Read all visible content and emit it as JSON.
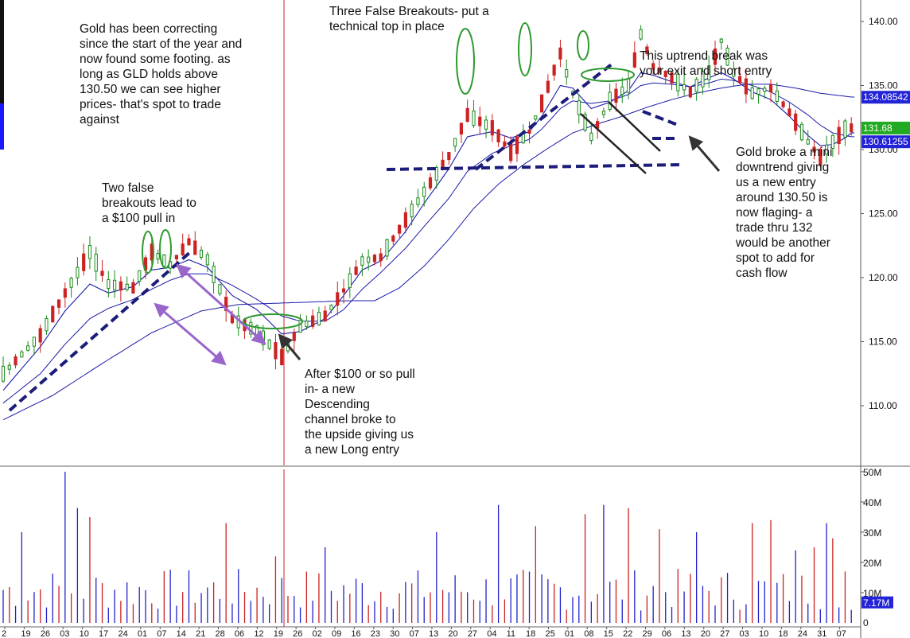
{
  "chart_data": {
    "type": "candlestick",
    "title": "",
    "colors": {
      "up": "#1a8a1a",
      "down": "#cc2222",
      "ma_line": "#1a1aa8",
      "trendline": "#1c1c7a",
      "arrow_purple": "#9966cc",
      "arrow_dark": "#333333",
      "ellipse": "#2e9a2e",
      "volume_up": "#2222cc",
      "volume_down": "#cc2222",
      "divider": "#cc2222",
      "badge_blue": "#2323d8",
      "badge_green": "#22aa22"
    },
    "price_axis": {
      "ylim": [
        106.0,
        141.0
      ],
      "ticks": [
        "110.00",
        "115.00",
        "120.00",
        "125.00",
        "130.00",
        "135.00",
        "140.00"
      ],
      "badges": [
        {
          "label": "134.08542",
          "value": 134.085,
          "color": "#2323d8"
        },
        {
          "label": "131.68",
          "value": 131.68,
          "color": "#22aa22"
        },
        {
          "label": "130.61255",
          "value": 130.61,
          "color": "#2323d8"
        }
      ]
    },
    "volume_axis": {
      "ylim": [
        0,
        52
      ],
      "ticks": [
        "10M",
        "20M",
        "30M",
        "40M",
        "50M"
      ],
      "zero_label": "0",
      "badge": {
        "label": "7.17M",
        "value": 7.17,
        "color": "#2323d8"
      }
    },
    "x_tick_labels": [
      "2",
      "19",
      "26",
      "03",
      "10",
      "17",
      "24",
      "01",
      "07",
      "14",
      "21",
      "28",
      "06",
      "12",
      "19",
      "26",
      "02",
      "09",
      "16",
      "23",
      "30",
      "07",
      "13",
      "20",
      "27",
      "04",
      "11",
      "18",
      "25",
      "01",
      "08",
      "15",
      "22",
      "29",
      "06",
      "13",
      "20",
      "27",
      "03",
      "10",
      "18",
      "24",
      "31",
      "07"
    ],
    "price_path": [
      [
        0,
        112.5
      ],
      [
        6,
        115.5
      ],
      [
        10,
        118.8
      ],
      [
        14,
        122.0
      ],
      [
        17,
        119.5
      ],
      [
        21,
        119.2
      ],
      [
        24,
        122.0
      ],
      [
        27,
        121.0
      ],
      [
        30,
        122.8
      ],
      [
        33,
        121.4
      ],
      [
        37,
        116.8
      ],
      [
        41,
        115.8
      ],
      [
        45,
        113.8
      ],
      [
        48,
        116.2
      ],
      [
        52,
        117.0
      ],
      [
        55,
        119.0
      ],
      [
        58,
        121.3
      ],
      [
        61,
        121.6
      ],
      [
        65,
        124.5
      ],
      [
        68,
        126.7
      ],
      [
        72,
        129.5
      ],
      [
        75,
        132.7
      ],
      [
        79,
        131.7
      ],
      [
        82,
        129.8
      ],
      [
        85,
        131.4
      ],
      [
        87,
        133.6
      ],
      [
        90,
        137.5
      ],
      [
        92,
        134.4
      ],
      [
        95,
        131.0
      ],
      [
        98,
        133.8
      ],
      [
        101,
        135.0
      ],
      [
        103,
        139.0
      ],
      [
        105,
        136.5
      ],
      [
        108,
        135.6
      ],
      [
        111,
        134.5
      ],
      [
        114,
        136.0
      ],
      [
        116,
        138.5
      ],
      [
        118,
        136.0
      ],
      [
        121,
        134.4
      ],
      [
        124,
        134.8
      ],
      [
        127,
        132.9
      ],
      [
        130,
        130.6
      ],
      [
        132,
        129.4
      ],
      [
        134,
        130.6
      ],
      [
        136,
        131.6
      ],
      [
        137,
        131.7
      ]
    ],
    "ma_fast": [
      [
        0,
        111.2
      ],
      [
        6,
        114.6
      ],
      [
        10,
        117.4
      ],
      [
        14,
        119.5
      ],
      [
        17,
        118.8
      ],
      [
        21,
        119.3
      ],
      [
        24,
        120.6
      ],
      [
        27,
        120.8
      ],
      [
        30,
        121.4
      ],
      [
        33,
        120.8
      ],
      [
        37,
        118.6
      ],
      [
        41,
        117.5
      ],
      [
        45,
        115.6
      ],
      [
        48,
        115.8
      ],
      [
        52,
        116.8
      ],
      [
        55,
        118.6
      ],
      [
        58,
        120.6
      ],
      [
        61,
        121.3
      ],
      [
        65,
        123.6
      ],
      [
        68,
        125.8
      ],
      [
        72,
        128.5
      ],
      [
        75,
        131.0
      ],
      [
        79,
        131.4
      ],
      [
        82,
        130.9
      ],
      [
        85,
        131.4
      ],
      [
        87,
        132.6
      ],
      [
        90,
        135.0
      ],
      [
        92,
        134.8
      ],
      [
        95,
        133.2
      ],
      [
        98,
        133.7
      ],
      [
        101,
        134.6
      ],
      [
        103,
        136.0
      ],
      [
        105,
        135.8
      ],
      [
        108,
        135.3
      ],
      [
        111,
        134.9
      ],
      [
        114,
        135.6
      ],
      [
        116,
        136.0
      ],
      [
        118,
        135.5
      ],
      [
        121,
        134.5
      ],
      [
        124,
        133.9
      ],
      [
        127,
        132.6
      ],
      [
        130,
        131.1
      ],
      [
        132,
        130.3
      ],
      [
        134,
        130.4
      ],
      [
        136,
        130.9
      ],
      [
        137,
        131.3
      ]
    ],
    "ma_mid": [
      [
        0,
        110.2
      ],
      [
        6,
        112.5
      ],
      [
        10,
        114.8
      ],
      [
        14,
        116.8
      ],
      [
        17,
        117.6
      ],
      [
        21,
        118.3
      ],
      [
        24,
        119.1
      ],
      [
        27,
        119.8
      ],
      [
        30,
        120.3
      ],
      [
        33,
        120.3
      ],
      [
        37,
        119.4
      ],
      [
        41,
        118.3
      ],
      [
        45,
        117.0
      ],
      [
        48,
        116.6
      ],
      [
        52,
        116.6
      ],
      [
        55,
        117.5
      ],
      [
        58,
        119.1
      ],
      [
        61,
        120.4
      ],
      [
        65,
        122.3
      ],
      [
        68,
        124.0
      ],
      [
        72,
        126.2
      ],
      [
        75,
        128.3
      ],
      [
        79,
        129.7
      ],
      [
        82,
        130.3
      ],
      [
        85,
        130.8
      ],
      [
        87,
        131.6
      ],
      [
        90,
        133.2
      ],
      [
        92,
        133.8
      ],
      [
        95,
        133.6
      ],
      [
        98,
        133.8
      ],
      [
        101,
        134.3
      ],
      [
        103,
        135.0
      ],
      [
        105,
        135.2
      ],
      [
        108,
        135.1
      ],
      [
        111,
        134.9
      ],
      [
        114,
        135.2
      ],
      [
        116,
        135.5
      ],
      [
        118,
        135.4
      ],
      [
        121,
        135.0
      ],
      [
        124,
        134.5
      ],
      [
        127,
        133.7
      ],
      [
        130,
        132.7
      ],
      [
        132,
        131.9
      ],
      [
        134,
        131.3
      ],
      [
        136,
        131.1
      ],
      [
        137,
        131.0
      ]
    ],
    "ma_slow": [
      [
        0,
        108.9
      ],
      [
        8,
        110.8
      ],
      [
        16,
        113.3
      ],
      [
        24,
        115.7
      ],
      [
        32,
        117.4
      ],
      [
        38,
        117.9
      ],
      [
        44,
        118.0
      ],
      [
        50,
        118.1
      ],
      [
        56,
        118.2
      ],
      [
        60,
        118.2
      ],
      [
        64,
        119.2
      ],
      [
        68,
        120.9
      ],
      [
        72,
        123.0
      ],
      [
        76,
        125.4
      ],
      [
        80,
        127.3
      ],
      [
        84,
        128.8
      ],
      [
        88,
        130.1
      ],
      [
        92,
        131.3
      ],
      [
        96,
        132.0
      ],
      [
        100,
        132.6
      ],
      [
        104,
        133.3
      ],
      [
        108,
        133.9
      ],
      [
        112,
        134.4
      ],
      [
        116,
        134.8
      ],
      [
        120,
        135.1
      ],
      [
        124,
        135.1
      ],
      [
        128,
        134.8
      ],
      [
        132,
        134.4
      ],
      [
        137,
        134.1
      ]
    ],
    "volume_highlights": [
      [
        3,
        30
      ],
      [
        10,
        50
      ],
      [
        12,
        38
      ],
      [
        14,
        35
      ],
      [
        36,
        33
      ],
      [
        44,
        22
      ],
      [
        52,
        25
      ],
      [
        70,
        30
      ],
      [
        80,
        39
      ],
      [
        86,
        32
      ],
      [
        94,
        36
      ],
      [
        97,
        39
      ],
      [
        101,
        38
      ],
      [
        106,
        31
      ],
      [
        112,
        30
      ],
      [
        121,
        33
      ],
      [
        124,
        34
      ],
      [
        128,
        24
      ],
      [
        131,
        25
      ],
      [
        133,
        33
      ],
      [
        134,
        28
      ],
      [
        136,
        17
      ]
    ]
  },
  "annotations": {
    "top_left": "Gold has been correcting\nsince the start of the year and\nnow found some footing. as\nlong as GLD holds above\n130.50 we can see higher\nprices- that's spot to trade\nagainst",
    "two_false": "Two false\nbreakouts lead to\na $100 pull in",
    "three_false": "Three False Breakouts- put a\ntechnical top in place",
    "uptrend_break": "This uptrend break was\nyour exit and short entry",
    "mini_downtrend": "Gold broke a mini\ndowntrend giving\nus a new entry\naround 130.50 is\nnow flaging- a\ntrade thru 132\nwould be another\nspot to add for\ncash flow",
    "after_pullin": "After $100 or so pull\nin- a new\nDescending\nchannel broke to\nthe upside giving us\na new Long entry"
  }
}
